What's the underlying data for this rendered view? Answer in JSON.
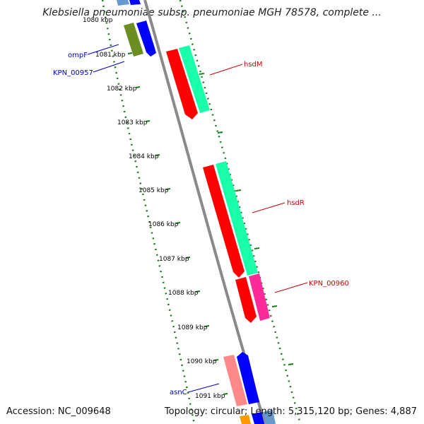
{
  "title": "Klebsiella pneumoniae subsp. pneumoniae MGH 78578, complete ...",
  "footer": {
    "accession": "Accession: NC_009648",
    "summary": "Topology: circular; Length: 5,315,120 bp; Genes: 4,887"
  },
  "ruler": {
    "unit": "kbp",
    "ticks": [
      {
        "label": "1080 kbp",
        "kbp": 1080
      },
      {
        "label": "1081 kbp",
        "kbp": 1081
      },
      {
        "label": "1082 kbp",
        "kbp": 1082
      },
      {
        "label": "1083 kbp",
        "kbp": 1083
      },
      {
        "label": "1084 kbp",
        "kbp": 1084
      },
      {
        "label": "1085 kbp",
        "kbp": 1085
      },
      {
        "label": "1086 kbp",
        "kbp": 1086
      },
      {
        "label": "1087 kbp",
        "kbp": 1087
      },
      {
        "label": "1088 kbp",
        "kbp": 1088
      },
      {
        "label": "1089 kbp",
        "kbp": 1089
      },
      {
        "label": "1090 kbp",
        "kbp": 1090
      },
      {
        "label": "1091 kbp",
        "kbp": 1091
      }
    ]
  },
  "genes": [
    {
      "name": "ompF",
      "label_color": "#0000cc"
    },
    {
      "name": "KPN_00957",
      "label_color": "#0000cc"
    },
    {
      "name": "hsdM",
      "label_color": "#cc0000"
    },
    {
      "name": "hsdR",
      "label_color": "#cc0000"
    },
    {
      "name": "KPN_00960",
      "label_color": "#cc0000"
    },
    {
      "name": "asnC",
      "label_color": "#0000cc"
    }
  ],
  "colors": {
    "backbone": "#8a8a8a",
    "tick_green": "#1a7a1a",
    "red_feature": "#ff0000",
    "teal_feature": "#1affaa",
    "pink_feature": "#ff2a9a",
    "blue_feature": "#0000ff",
    "olive_feature": "#6b8e23",
    "light_red_feature": "#ff8888",
    "orange_feature": "#ff9900",
    "light_blue_feature": "#6699cc"
  }
}
